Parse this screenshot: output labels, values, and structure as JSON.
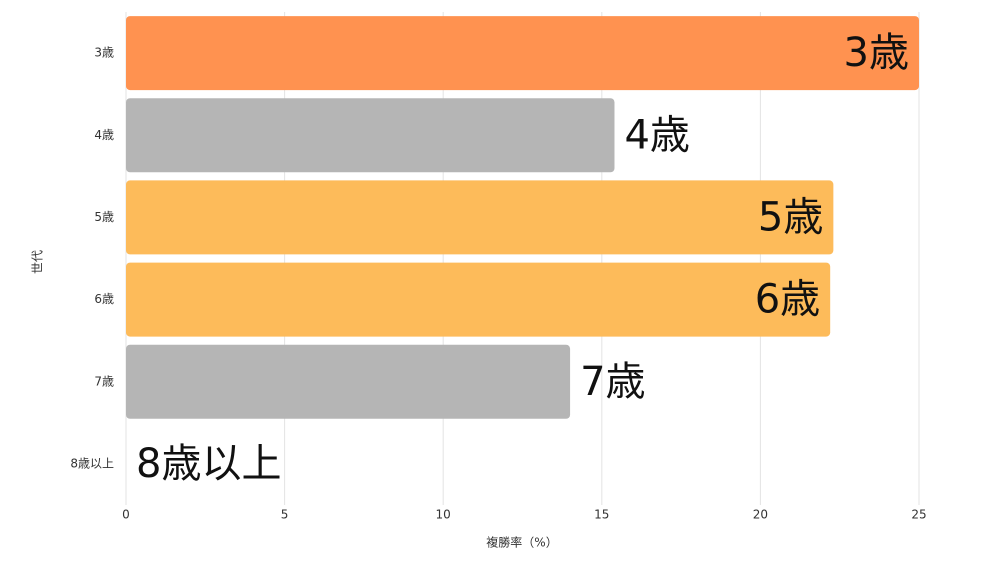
{
  "chart_data": {
    "type": "barh",
    "categories": [
      "3歳",
      "4歳",
      "5歳",
      "6歳",
      "7歳",
      "8歳以上"
    ],
    "values": [
      25,
      15.4,
      22.3,
      22.2,
      14.0,
      0
    ],
    "colors": [
      "#ff9250",
      "#b5b5b5",
      "#fdbb5a",
      "#fdbb5a",
      "#b5b5b5",
      "#b5b5b5"
    ],
    "xlabel": "複勝率（%）",
    "ylabel": "世代",
    "xlim": [
      0,
      25
    ],
    "xticks": [
      0,
      5,
      10,
      15,
      20,
      25
    ],
    "grid": true
  }
}
